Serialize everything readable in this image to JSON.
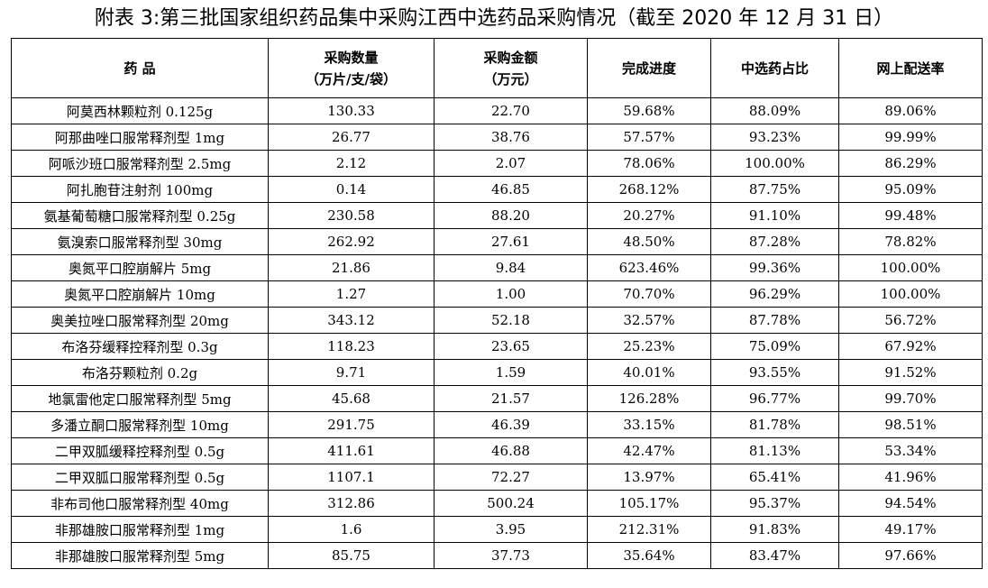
{
  "title": "附表 3:第三批国家组织药品集中采购江西中选药品采购情况（截至 2020 年 12 月 31 日）",
  "headers": {
    "drug": "药 品",
    "quantity": [
      "采购数量",
      "（万片/支/袋）"
    ],
    "amount": [
      "采购金额",
      "（万元）"
    ],
    "progress": "完成进度",
    "share": "中选药占比",
    "online_rate": "网上配送率"
  },
  "rows": [
    {
      "drug": "阿莫西林颗粒剂 0.125g",
      "quantity": "130.33",
      "amount": "22.70",
      "progress": "59.68%",
      "share": "88.09%",
      "online_rate": "89.06%"
    },
    {
      "drug": "阿那曲唑口服常释剂型 1mg",
      "quantity": "26.77",
      "amount": "38.76",
      "progress": "57.57%",
      "share": "93.23%",
      "online_rate": "99.99%"
    },
    {
      "drug": "阿哌沙班口服常释剂型 2.5mg",
      "quantity": "2.12",
      "amount": "2.07",
      "progress": "78.06%",
      "share": "100.00%",
      "online_rate": "86.29%"
    },
    {
      "drug": "阿扎胞苷注射剂 100mg",
      "quantity": "0.14",
      "amount": "46.85",
      "progress": "268.12%",
      "share": "87.75%",
      "online_rate": "95.09%"
    },
    {
      "drug": "氨基葡萄糖口服常释剂型 0.25g",
      "quantity": "230.58",
      "amount": "88.20",
      "progress": "20.27%",
      "share": "91.10%",
      "online_rate": "99.48%"
    },
    {
      "drug": "氨溴索口服常释剂型 30mg",
      "quantity": "262.92",
      "amount": "27.61",
      "progress": "48.50%",
      "share": "87.28%",
      "online_rate": "78.82%"
    },
    {
      "drug": "奥氮平口腔崩解片 5mg",
      "quantity": "21.86",
      "amount": "9.84",
      "progress": "623.46%",
      "share": "99.36%",
      "online_rate": "100.00%"
    },
    {
      "drug": "奥氮平口腔崩解片 10mg",
      "quantity": "1.27",
      "amount": "1.00",
      "progress": "70.70%",
      "share": "96.29%",
      "online_rate": "100.00%"
    },
    {
      "drug": "奥美拉唑口服常释剂型 20mg",
      "quantity": "343.12",
      "amount": "52.18",
      "progress": "32.57%",
      "share": "87.78%",
      "online_rate": "56.72%"
    },
    {
      "drug": "布洛芬缓释控释剂型 0.3g",
      "quantity": "118.23",
      "amount": "23.65",
      "progress": "25.23%",
      "share": "75.09%",
      "online_rate": "67.92%"
    },
    {
      "drug": "布洛芬颗粒剂 0.2g",
      "quantity": "9.71",
      "amount": "1.59",
      "progress": "40.01%",
      "share": "93.55%",
      "online_rate": "91.52%"
    },
    {
      "drug": "地氯雷他定口服常释剂型 5mg",
      "quantity": "45.68",
      "amount": "21.57",
      "progress": "126.28%",
      "share": "96.77%",
      "online_rate": "99.70%"
    },
    {
      "drug": "多潘立酮口服常释剂型 10mg",
      "quantity": "291.75",
      "amount": "46.39",
      "progress": "33.15%",
      "share": "81.78%",
      "online_rate": "98.51%"
    },
    {
      "drug": "二甲双胍缓释控释剂型 0.5g",
      "quantity": "411.61",
      "amount": "46.88",
      "progress": "42.47%",
      "share": "81.13%",
      "online_rate": "53.34%"
    },
    {
      "drug": "二甲双胍口服常释剂型 0.5g",
      "quantity": "1107.1",
      "amount": "72.27",
      "progress": "13.97%",
      "share": "65.41%",
      "online_rate": "41.96%"
    },
    {
      "drug": "非布司他口服常释剂型 40mg",
      "quantity": "312.86",
      "amount": "500.24",
      "progress": "105.17%",
      "share": "95.37%",
      "online_rate": "94.54%"
    },
    {
      "drug": "非那雄胺口服常释剂型 1mg",
      "quantity": "1.6",
      "amount": "3.95",
      "progress": "212.31%",
      "share": "91.83%",
      "online_rate": "49.17%"
    },
    {
      "drug": "非那雄胺口服常释剂型 5mg",
      "quantity": "85.75",
      "amount": "37.73",
      "progress": "35.64%",
      "share": "83.47%",
      "online_rate": "97.66%"
    }
  ]
}
